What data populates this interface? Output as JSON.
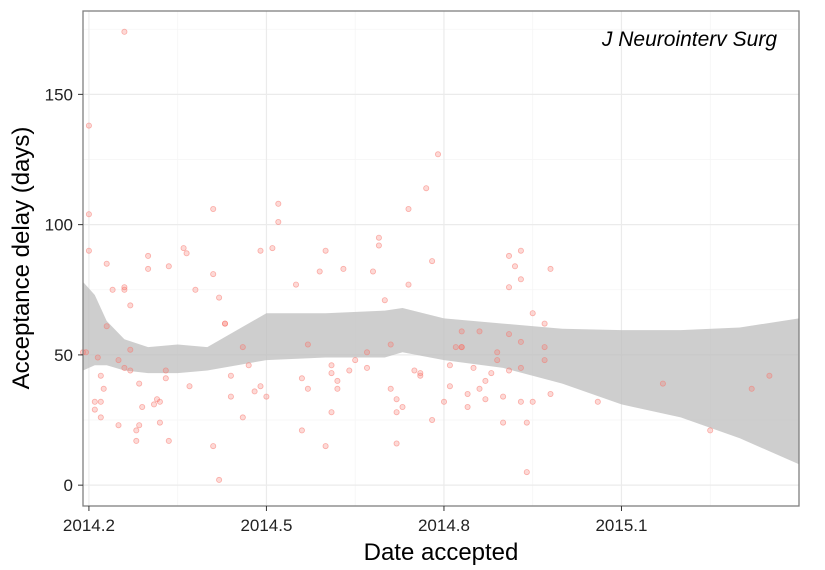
{
  "chart_data": {
    "type": "scatter",
    "annotation": "J Neurointerv Surg",
    "xlabel": "Date accepted",
    "ylabel": "Acceptance delay (days)",
    "xlim": [
      2014.19,
      2015.4
    ],
    "ylim": [
      -8,
      182
    ],
    "x_ticks": [
      2014.2,
      2014.5,
      2014.8,
      2015.1
    ],
    "x_tick_labels": [
      "2014.2",
      "2014.5",
      "2014.8",
      "2015.1"
    ],
    "y_ticks": [
      0,
      50,
      100,
      150
    ],
    "y_tick_labels": [
      "0",
      "50",
      "100",
      "150"
    ],
    "grid": true,
    "colors": {
      "points": "#f8766d",
      "ribbon": "#bdbdbd",
      "grid_major": "#ebebeb",
      "grid_minor": "#f5f5f5",
      "frame": "#7f7f7f"
    },
    "points": [
      [
        2014.19,
        51
      ],
      [
        2014.195,
        51
      ],
      [
        2014.2,
        104
      ],
      [
        2014.2,
        138
      ],
      [
        2014.2,
        90
      ],
      [
        2014.21,
        32
      ],
      [
        2014.21,
        29
      ],
      [
        2014.215,
        49
      ],
      [
        2014.22,
        32
      ],
      [
        2014.22,
        42
      ],
      [
        2014.22,
        26
      ],
      [
        2014.225,
        37
      ],
      [
        2014.23,
        85
      ],
      [
        2014.23,
        61
      ],
      [
        2014.24,
        75
      ],
      [
        2014.25,
        23
      ],
      [
        2014.25,
        48
      ],
      [
        2014.26,
        174
      ],
      [
        2014.26,
        75
      ],
      [
        2014.26,
        76
      ],
      [
        2014.26,
        45
      ],
      [
        2014.27,
        52
      ],
      [
        2014.27,
        44
      ],
      [
        2014.27,
        69
      ],
      [
        2014.28,
        17
      ],
      [
        2014.28,
        21
      ],
      [
        2014.285,
        23
      ],
      [
        2014.285,
        39
      ],
      [
        2014.29,
        30
      ],
      [
        2014.3,
        88
      ],
      [
        2014.3,
        83
      ],
      [
        2014.31,
        31
      ],
      [
        2014.315,
        33
      ],
      [
        2014.32,
        32
      ],
      [
        2014.32,
        24
      ],
      [
        2014.33,
        44
      ],
      [
        2014.33,
        41
      ],
      [
        2014.335,
        17
      ],
      [
        2014.335,
        84
      ],
      [
        2014.36,
        91
      ],
      [
        2014.365,
        89
      ],
      [
        2014.37,
        38
      ],
      [
        2014.38,
        75
      ],
      [
        2014.41,
        15
      ],
      [
        2014.41,
        81
      ],
      [
        2014.41,
        106
      ],
      [
        2014.42,
        72
      ],
      [
        2014.42,
        2
      ],
      [
        2014.43,
        62
      ],
      [
        2014.43,
        62
      ],
      [
        2014.44,
        42
      ],
      [
        2014.44,
        34
      ],
      [
        2014.46,
        26
      ],
      [
        2014.46,
        53
      ],
      [
        2014.47,
        46
      ],
      [
        2014.48,
        36
      ],
      [
        2014.49,
        38
      ],
      [
        2014.49,
        90
      ],
      [
        2014.5,
        34
      ],
      [
        2014.51,
        91
      ],
      [
        2014.52,
        101
      ],
      [
        2014.52,
        108
      ],
      [
        2014.55,
        77
      ],
      [
        2014.56,
        21
      ],
      [
        2014.56,
        41
      ],
      [
        2014.57,
        54
      ],
      [
        2014.57,
        37
      ],
      [
        2014.59,
        82
      ],
      [
        2014.6,
        90
      ],
      [
        2014.6,
        15
      ],
      [
        2014.61,
        28
      ],
      [
        2014.61,
        46
      ],
      [
        2014.61,
        43
      ],
      [
        2014.62,
        37
      ],
      [
        2014.62,
        40
      ],
      [
        2014.63,
        83
      ],
      [
        2014.64,
        44
      ],
      [
        2014.65,
        48
      ],
      [
        2014.67,
        45
      ],
      [
        2014.67,
        51
      ],
      [
        2014.68,
        82
      ],
      [
        2014.69,
        92
      ],
      [
        2014.69,
        95
      ],
      [
        2014.7,
        71
      ],
      [
        2014.71,
        54
      ],
      [
        2014.71,
        37
      ],
      [
        2014.72,
        33
      ],
      [
        2014.72,
        16
      ],
      [
        2014.72,
        28
      ],
      [
        2014.73,
        30
      ],
      [
        2014.74,
        77
      ],
      [
        2014.74,
        106
      ],
      [
        2014.75,
        44
      ],
      [
        2014.76,
        42
      ],
      [
        2014.76,
        43
      ],
      [
        2014.77,
        114
      ],
      [
        2014.78,
        86
      ],
      [
        2014.78,
        25
      ],
      [
        2014.79,
        127
      ],
      [
        2014.8,
        32
      ],
      [
        2014.81,
        38
      ],
      [
        2014.81,
        46
      ],
      [
        2014.82,
        53
      ],
      [
        2014.83,
        59
      ],
      [
        2014.83,
        53
      ],
      [
        2014.83,
        53
      ],
      [
        2014.84,
        35
      ],
      [
        2014.84,
        30
      ],
      [
        2014.85,
        45
      ],
      [
        2014.86,
        37
      ],
      [
        2014.86,
        59
      ],
      [
        2014.87,
        33
      ],
      [
        2014.87,
        40
      ],
      [
        2014.88,
        43
      ],
      [
        2014.89,
        51
      ],
      [
        2014.89,
        48
      ],
      [
        2014.9,
        24
      ],
      [
        2014.9,
        34
      ],
      [
        2014.91,
        88
      ],
      [
        2014.91,
        76
      ],
      [
        2014.91,
        58
      ],
      [
        2014.91,
        44
      ],
      [
        2014.92,
        84
      ],
      [
        2014.93,
        90
      ],
      [
        2014.93,
        79
      ],
      [
        2014.93,
        55
      ],
      [
        2014.93,
        45
      ],
      [
        2014.93,
        32
      ],
      [
        2014.94,
        24
      ],
      [
        2014.94,
        5
      ],
      [
        2014.95,
        32
      ],
      [
        2014.95,
        66
      ],
      [
        2014.97,
        62
      ],
      [
        2014.97,
        53
      ],
      [
        2014.97,
        48
      ],
      [
        2014.98,
        83
      ],
      [
        2014.98,
        35
      ],
      [
        2015.06,
        32
      ],
      [
        2015.17,
        39
      ],
      [
        2015.25,
        21
      ],
      [
        2015.32,
        37
      ],
      [
        2015.35,
        42
      ]
    ],
    "smooth_band": {
      "x": [
        2014.19,
        2014.21,
        2014.23,
        2014.26,
        2014.3,
        2014.35,
        2014.4,
        2014.5,
        2014.6,
        2014.7,
        2014.73,
        2014.8,
        2014.9,
        2015.0,
        2015.1,
        2015.2,
        2015.3,
        2015.4
      ],
      "upper": [
        78,
        73,
        63,
        56,
        53,
        54,
        53,
        66,
        66,
        67,
        68,
        64,
        62,
        60,
        59.5,
        59.5,
        60.5,
        64
      ],
      "lower": [
        44,
        46,
        46,
        44,
        43,
        43,
        44,
        48,
        49,
        49,
        51,
        48,
        45,
        39,
        31,
        26,
        18,
        8
      ]
    }
  }
}
